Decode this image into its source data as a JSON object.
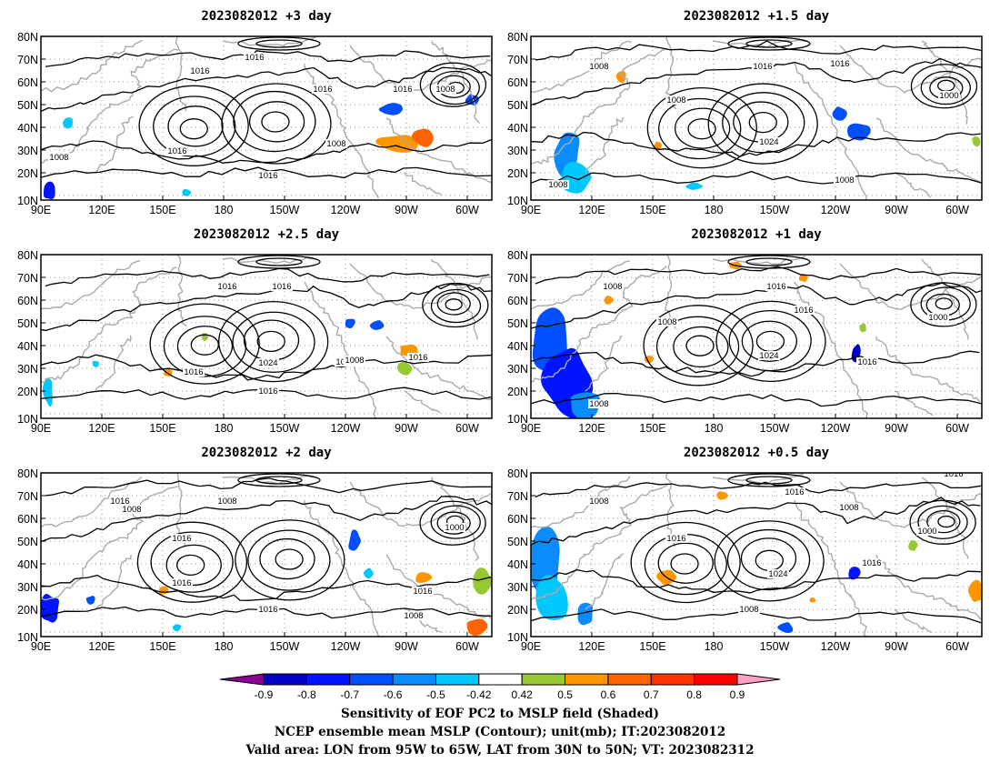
{
  "panels": [
    {
      "title": "2023082012 +3 day",
      "contour_labels": [
        "1016",
        "1016",
        "1016",
        "1016",
        "1016",
        "1008",
        "1008",
        "1008",
        "1016"
      ]
    },
    {
      "title": "2023082012 +1.5 day",
      "contour_labels": [
        "1008",
        "1016",
        "1016",
        "1008",
        "1024",
        "1000",
        "1008",
        "1008"
      ]
    },
    {
      "title": "2023082012 +2.5 day",
      "contour_labels": [
        "1016",
        "1016",
        "1008",
        "1016",
        "1024",
        "1008",
        "1016",
        "1016"
      ]
    },
    {
      "title": "2023082012 +1 day",
      "contour_labels": [
        "1008",
        "1016",
        "1008",
        "1016",
        "1024",
        "1000",
        "1016",
        "1008"
      ]
    },
    {
      "title": "2023082012 +2 day",
      "contour_labels": [
        "1016",
        "1008",
        "1008",
        "1016",
        "1016",
        "1000",
        "1016",
        "1016",
        "1008"
      ]
    },
    {
      "title": "2023082012 +0.5 day",
      "contour_labels": [
        "1008",
        "1016",
        "1008",
        "1016",
        "1024",
        "1000",
        "1016",
        "1008",
        "1016"
      ]
    }
  ],
  "axes": {
    "x_ticks": [
      "90E",
      "120E",
      "150E",
      "180",
      "150W",
      "120W",
      "90W",
      "60W"
    ],
    "y_ticks": [
      "80N",
      "70N",
      "60N",
      "50N",
      "40N",
      "30N",
      "20N",
      "10N"
    ]
  },
  "colorbar": {
    "tick_labels": [
      "-0.9",
      "-0.8",
      "-0.7",
      "-0.6",
      "-0.5",
      "-0.42",
      "0.42",
      "0.5",
      "0.6",
      "0.7",
      "0.8",
      "0.9"
    ],
    "colors": [
      "#8c0096",
      "#0000c8",
      "#0014ff",
      "#0050ff",
      "#0a8cff",
      "#00c8ff",
      "#ffffff",
      "#96c832",
      "#ff9600",
      "#ff6400",
      "#ff3200",
      "#ff0000",
      "#ffa0c8"
    ]
  },
  "caption": [
    "Sensitivity of EOF PC2 to MSLP field (Shaded)",
    "NCEP ensemble mean MSLP (Contour); unit(mb); IT:2023082012",
    "Valid area: LON from 95W to 65W, LAT from 30N to 50N; VT: 2023082312"
  ]
}
